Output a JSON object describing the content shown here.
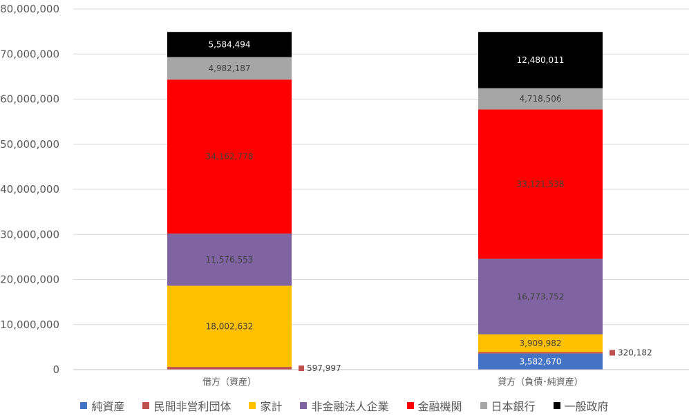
{
  "chart_data": {
    "type": "bar",
    "stacked": true,
    "categories": [
      "借方（資産）",
      "貸方（負債･純資産）"
    ],
    "ylim": [
      0,
      80000000
    ],
    "yticks": [
      0,
      10000000,
      20000000,
      30000000,
      40000000,
      50000000,
      60000000,
      70000000,
      80000000
    ],
    "ytick_labels": [
      "0",
      "10,000,000",
      "20,000,000",
      "30,000,000",
      "40,000,000",
      "50,000,000",
      "60,000,000",
      "70,000,000",
      "80,000,000"
    ],
    "grid": true,
    "legend_position": "bottom",
    "series": [
      {
        "name": "純資産",
        "color": "#4472C4",
        "values": [
          null,
          3582670
        ],
        "labels": [
          "",
          "3,582,670"
        ]
      },
      {
        "name": "民間非営利団体",
        "color": "#C0504D",
        "values": [
          597997,
          320182
        ],
        "labels": [
          "597,997",
          "320,182"
        ]
      },
      {
        "name": "家計",
        "color": "#FFC000",
        "values": [
          18002632,
          3909982
        ],
        "labels": [
          "18,002,632",
          "3,909,982"
        ]
      },
      {
        "name": "非金融法人企業",
        "color": "#8064A2",
        "values": [
          11576553,
          16773752
        ],
        "labels": [
          "11,576,553",
          "16,773,752"
        ]
      },
      {
        "name": "金融機関",
        "color": "#FF0000",
        "values": [
          34162778,
          33121538
        ],
        "labels": [
          "34,162,778",
          "33,121,538"
        ]
      },
      {
        "name": "日本銀行",
        "color": "#A6A6A6",
        "values": [
          4982187,
          4718506
        ],
        "labels": [
          "4,982,187",
          "4,718,506"
        ]
      },
      {
        "name": "一般政府",
        "color": "#000000",
        "values": [
          5584494,
          12480011
        ],
        "labels": [
          "5,584,494",
          "12,480,011"
        ]
      }
    ]
  }
}
